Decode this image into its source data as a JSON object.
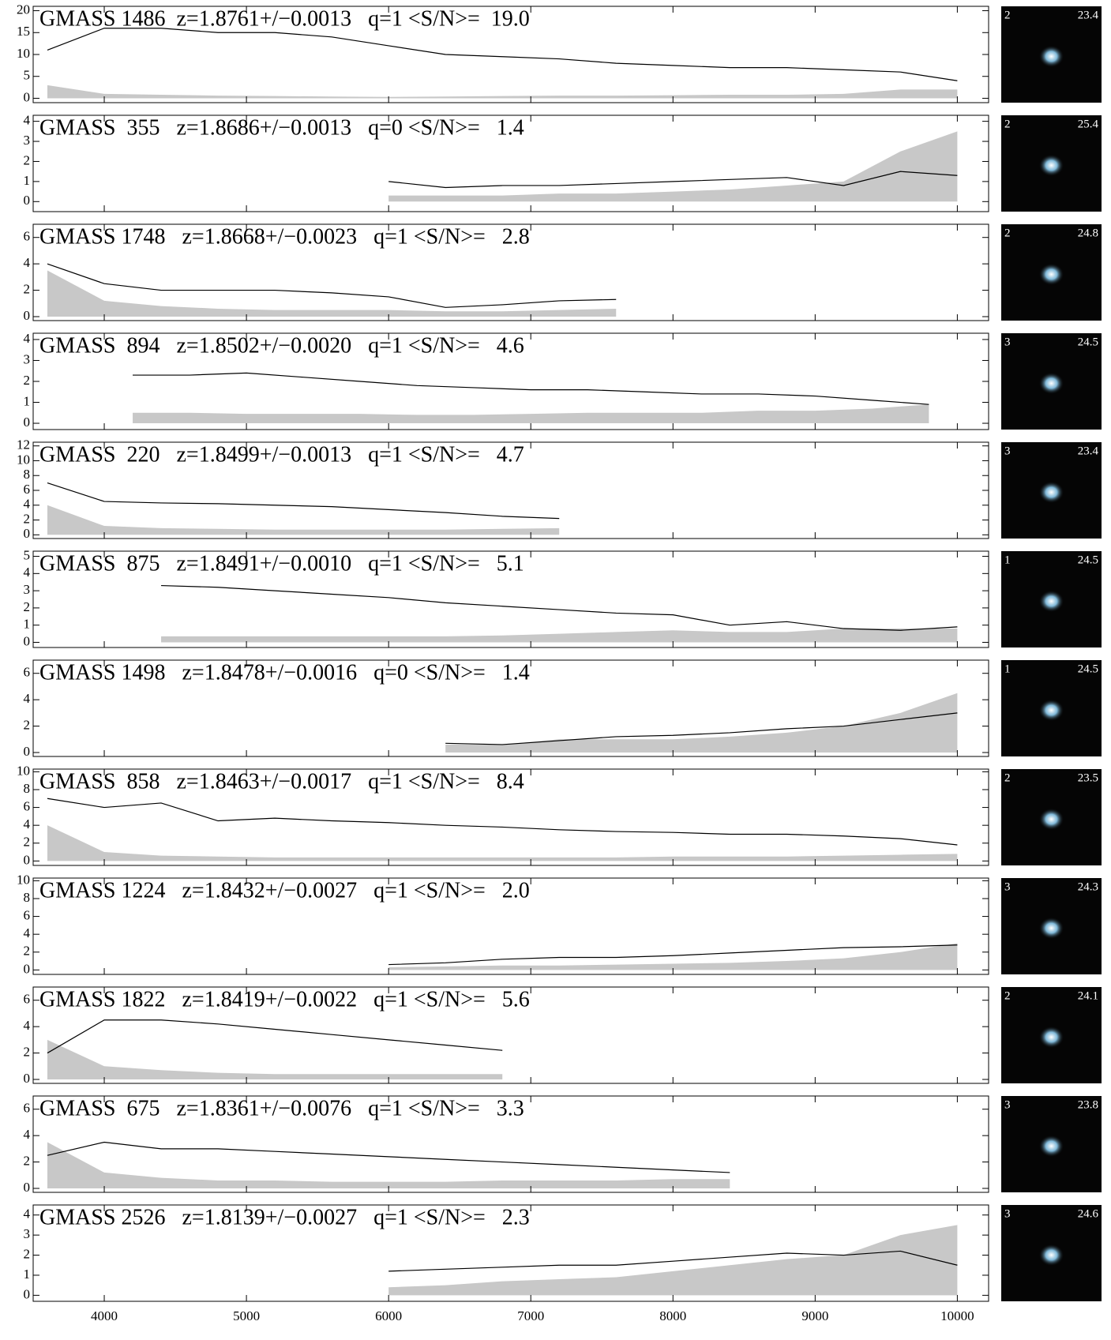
{
  "chart_data": [
    {
      "type": "line",
      "title": "GMASS 1486  z=1.8761+/−0.0013   q=1 <S/N>=  19.0",
      "thumb": {
        "quality": "2",
        "mag": "23.4"
      },
      "x": [
        3600,
        4000,
        4400,
        4800,
        5200,
        5600,
        6000,
        6400,
        6800,
        7200,
        7600,
        8000,
        8400,
        8800,
        9200,
        9600,
        10000
      ],
      "series": [
        {
          "fill": true,
          "color": "#c8c8c8",
          "values": [
            3,
            1,
            0.8,
            0.6,
            0.5,
            0.4,
            0.3,
            0.4,
            0.5,
            0.6,
            0.6,
            0.7,
            0.8,
            0.8,
            1,
            2,
            2
          ]
        },
        {
          "fill": false,
          "color": "#000000",
          "values": [
            11,
            16,
            16,
            15,
            15,
            14,
            12,
            10,
            9.5,
            9,
            8,
            7.5,
            7,
            7,
            6.5,
            6,
            4
          ]
        }
      ],
      "xlim": [
        3500,
        10220
      ],
      "ylim": [
        -1,
        21
      ],
      "yticks": [
        0,
        5,
        10,
        15,
        20
      ]
    },
    {
      "type": "line",
      "title": "GMASS  355   z=1.8686+/−0.0013   q=0 <S/N>=   1.4",
      "thumb": {
        "quality": "2",
        "mag": "25.4"
      },
      "x": [
        6000,
        6400,
        6800,
        7200,
        7600,
        8000,
        8400,
        8800,
        9200,
        9600,
        10000
      ],
      "series": [
        {
          "fill": true,
          "color": "#c8c8c8",
          "values": [
            0.3,
            0.3,
            0.3,
            0.4,
            0.4,
            0.5,
            0.6,
            0.8,
            1,
            2.5,
            3.5
          ]
        },
        {
          "fill": false,
          "color": "#000000",
          "values": [
            1,
            0.7,
            0.8,
            0.8,
            0.9,
            1,
            1.1,
            1.2,
            0.8,
            1.5,
            1.3
          ]
        }
      ],
      "xlim": [
        3500,
        10220
      ],
      "ylim": [
        -0.5,
        4.3
      ],
      "yticks": [
        0,
        1,
        2,
        3,
        4
      ]
    },
    {
      "type": "line",
      "title": "GMASS 1748   z=1.8668+/−0.0023   q=1 <S/N>=   2.8",
      "thumb": {
        "quality": "2",
        "mag": "24.8"
      },
      "x": [
        3600,
        4000,
        4400,
        4800,
        5200,
        5600,
        6000,
        6400,
        6800,
        7200,
        7600
      ],
      "series": [
        {
          "fill": true,
          "color": "#c8c8c8",
          "values": [
            3.5,
            1.2,
            0.8,
            0.6,
            0.5,
            0.5,
            0.5,
            0.4,
            0.4,
            0.5,
            0.6
          ]
        },
        {
          "fill": false,
          "color": "#000000",
          "values": [
            4,
            2.5,
            2,
            2,
            2,
            1.8,
            1.5,
            0.7,
            0.9,
            1.2,
            1.3
          ]
        }
      ],
      "xlim": [
        3500,
        10220
      ],
      "ylim": [
        -0.3,
        7
      ],
      "yticks": [
        0,
        2,
        4,
        6
      ]
    },
    {
      "type": "line",
      "title": "GMASS  894   z=1.8502+/−0.0020   q=1 <S/N>=   4.6",
      "thumb": {
        "quality": "3",
        "mag": "24.5"
      },
      "x": [
        4200,
        4600,
        5000,
        5400,
        5800,
        6200,
        6600,
        7000,
        7400,
        7800,
        8200,
        8600,
        9000,
        9400,
        9800
      ],
      "series": [
        {
          "fill": true,
          "color": "#c8c8c8",
          "values": [
            0.5,
            0.5,
            0.45,
            0.45,
            0.45,
            0.4,
            0.4,
            0.45,
            0.5,
            0.5,
            0.5,
            0.6,
            0.6,
            0.7,
            0.9
          ]
        },
        {
          "fill": false,
          "color": "#000000",
          "values": [
            2.3,
            2.3,
            2.4,
            2.2,
            2,
            1.8,
            1.7,
            1.6,
            1.6,
            1.5,
            1.4,
            1.4,
            1.3,
            1.1,
            0.9
          ]
        }
      ],
      "xlim": [
        3500,
        10220
      ],
      "ylim": [
        -0.3,
        4.3
      ],
      "yticks": [
        0,
        1,
        2,
        3,
        4
      ]
    },
    {
      "type": "line",
      "title": "GMASS  220   z=1.8499+/−0.0013   q=1 <S/N>=   4.7",
      "thumb": {
        "quality": "3",
        "mag": "23.4"
      },
      "x": [
        3600,
        4000,
        4400,
        4800,
        5200,
        5600,
        6000,
        6400,
        6800,
        7200
      ],
      "series": [
        {
          "fill": true,
          "color": "#c8c8c8",
          "values": [
            4,
            1.2,
            0.9,
            0.8,
            0.7,
            0.7,
            0.7,
            0.7,
            0.8,
            0.9
          ]
        },
        {
          "fill": false,
          "color": "#000000",
          "values": [
            7,
            4.5,
            4.3,
            4.2,
            4,
            3.8,
            3.4,
            3,
            2.5,
            2.2
          ]
        }
      ],
      "xlim": [
        3500,
        10220
      ],
      "ylim": [
        -0.5,
        12.5
      ],
      "yticks": [
        0,
        2,
        4,
        6,
        8,
        10,
        12
      ]
    },
    {
      "type": "line",
      "title": "GMASS  875   z=1.8491+/−0.0010   q=1 <S/N>=   5.1",
      "thumb": {
        "quality": "1",
        "mag": "24.5"
      },
      "x": [
        4400,
        4800,
        5200,
        5600,
        6000,
        6400,
        6800,
        7200,
        7600,
        8000,
        8400,
        8800,
        9200,
        9600,
        10000
      ],
      "series": [
        {
          "fill": true,
          "color": "#c8c8c8",
          "values": [
            0.35,
            0.35,
            0.35,
            0.35,
            0.35,
            0.35,
            0.4,
            0.5,
            0.6,
            0.7,
            0.6,
            0.6,
            0.8,
            0.8,
            0.8
          ]
        },
        {
          "fill": false,
          "color": "#000000",
          "values": [
            3.3,
            3.2,
            3,
            2.8,
            2.6,
            2.3,
            2.1,
            1.9,
            1.7,
            1.6,
            1,
            1.2,
            0.8,
            0.7,
            0.9
          ]
        }
      ],
      "xlim": [
        3500,
        10220
      ],
      "ylim": [
        -0.3,
        5.3
      ],
      "yticks": [
        0,
        1,
        2,
        3,
        4,
        5
      ]
    },
    {
      "type": "line",
      "title": "GMASS 1498   z=1.8478+/−0.0016   q=0 <S/N>=   1.4",
      "thumb": {
        "quality": "1",
        "mag": "24.5"
      },
      "x": [
        6400,
        6800,
        7200,
        7600,
        8000,
        8400,
        8800,
        9200,
        9600,
        10000
      ],
      "series": [
        {
          "fill": true,
          "color": "#c8c8c8",
          "values": [
            0.6,
            0.6,
            1,
            1,
            1,
            1.2,
            1.5,
            2,
            3,
            4.5
          ]
        },
        {
          "fill": false,
          "color": "#000000",
          "values": [
            0.7,
            0.6,
            0.9,
            1.2,
            1.3,
            1.5,
            1.8,
            2,
            2.5,
            3
          ]
        }
      ],
      "xlim": [
        3500,
        10220
      ],
      "ylim": [
        -0.3,
        7
      ],
      "yticks": [
        0,
        2,
        4,
        6
      ]
    },
    {
      "type": "line",
      "title": "GMASS  858   z=1.8463+/−0.0017   q=1 <S/N>=   8.4",
      "thumb": {
        "quality": "2",
        "mag": "23.5"
      },
      "x": [
        3600,
        4000,
        4400,
        4800,
        5200,
        5600,
        6000,
        6400,
        6800,
        7200,
        7600,
        8000,
        8400,
        8800,
        9200,
        9600,
        10000
      ],
      "series": [
        {
          "fill": true,
          "color": "#c8c8c8",
          "values": [
            4,
            1,
            0.6,
            0.5,
            0.4,
            0.4,
            0.4,
            0.4,
            0.4,
            0.4,
            0.4,
            0.5,
            0.5,
            0.5,
            0.6,
            0.7,
            0.8
          ]
        },
        {
          "fill": false,
          "color": "#000000",
          "values": [
            7,
            6,
            6.5,
            4.5,
            4.8,
            4.5,
            4.3,
            4,
            3.8,
            3.5,
            3.3,
            3.2,
            3,
            3,
            2.8,
            2.5,
            1.8
          ]
        }
      ],
      "xlim": [
        3500,
        10220
      ],
      "ylim": [
        -0.5,
        10.3
      ],
      "yticks": [
        0,
        2,
        4,
        6,
        8,
        10
      ]
    },
    {
      "type": "line",
      "title": "GMASS 1224   z=1.8432+/−0.0027   q=1 <S/N>=   2.0",
      "thumb": {
        "quality": "3",
        "mag": "24.3"
      },
      "x": [
        6000,
        6400,
        6800,
        7200,
        7600,
        8000,
        8400,
        8800,
        9200,
        9600,
        10000
      ],
      "series": [
        {
          "fill": true,
          "color": "#c8c8c8",
          "values": [
            0.3,
            0.4,
            0.5,
            0.5,
            0.6,
            0.7,
            0.8,
            1,
            1.3,
            2,
            3
          ]
        },
        {
          "fill": false,
          "color": "#000000",
          "values": [
            0.6,
            0.8,
            1.2,
            1.4,
            1.4,
            1.6,
            1.9,
            2.2,
            2.5,
            2.6,
            2.8
          ]
        }
      ],
      "xlim": [
        3500,
        10220
      ],
      "ylim": [
        -0.5,
        10.3
      ],
      "yticks": [
        0,
        2,
        4,
        6,
        8,
        10
      ]
    },
    {
      "type": "line",
      "title": "GMASS 1822   z=1.8419+/−0.0022   q=1 <S/N>=   5.6",
      "thumb": {
        "quality": "2",
        "mag": "24.1"
      },
      "x": [
        3600,
        4000,
        4400,
        4800,
        5200,
        5600,
        6000,
        6400,
        6800
      ],
      "series": [
        {
          "fill": true,
          "color": "#c8c8c8",
          "values": [
            3,
            1,
            0.7,
            0.5,
            0.4,
            0.4,
            0.4,
            0.4,
            0.4
          ]
        },
        {
          "fill": false,
          "color": "#000000",
          "values": [
            2,
            4.5,
            4.5,
            4.2,
            3.8,
            3.4,
            3,
            2.6,
            2.2
          ]
        }
      ],
      "xlim": [
        3500,
        10220
      ],
      "ylim": [
        -0.3,
        7
      ],
      "yticks": [
        0,
        2,
        4,
        6
      ]
    },
    {
      "type": "line",
      "title": "GMASS  675   z=1.8361+/−0.0076   q=1 <S/N>=   3.3",
      "thumb": {
        "quality": "3",
        "mag": "23.8"
      },
      "x": [
        3600,
        4000,
        4400,
        4800,
        5200,
        5600,
        6000,
        6400,
        6800,
        7200,
        7600,
        8000,
        8400
      ],
      "series": [
        {
          "fill": true,
          "color": "#c8c8c8",
          "values": [
            3.5,
            1.2,
            0.8,
            0.6,
            0.6,
            0.5,
            0.5,
            0.5,
            0.6,
            0.6,
            0.6,
            0.7,
            0.7
          ]
        },
        {
          "fill": false,
          "color": "#000000",
          "values": [
            2.5,
            3.5,
            3,
            3,
            2.8,
            2.6,
            2.4,
            2.2,
            2,
            1.8,
            1.6,
            1.4,
            1.2
          ]
        }
      ],
      "xlim": [
        3500,
        10220
      ],
      "ylim": [
        -0.3,
        7
      ],
      "yticks": [
        0,
        2,
        4,
        6
      ]
    },
    {
      "type": "line",
      "title": "GMASS 2526   z=1.8139+/−0.0027   q=1 <S/N>=   2.3",
      "thumb": {
        "quality": "3",
        "mag": "24.6"
      },
      "x": [
        6000,
        6400,
        6800,
        7200,
        7600,
        8000,
        8400,
        8800,
        9200,
        9600,
        10000
      ],
      "series": [
        {
          "fill": true,
          "color": "#c8c8c8",
          "values": [
            0.4,
            0.5,
            0.7,
            0.8,
            0.9,
            1.2,
            1.5,
            1.8,
            2,
            3,
            3.5
          ]
        },
        {
          "fill": false,
          "color": "#000000",
          "values": [
            1.2,
            1.3,
            1.4,
            1.5,
            1.5,
            1.7,
            1.9,
            2.1,
            2,
            2.2,
            1.5
          ]
        }
      ],
      "xlim": [
        3500,
        10220
      ],
      "ylim": [
        -0.3,
        4.5
      ],
      "yticks": [
        0,
        1,
        2,
        3,
        4
      ],
      "xticks": [
        4000,
        5000,
        6000,
        7000,
        8000,
        9000,
        10000
      ]
    }
  ]
}
